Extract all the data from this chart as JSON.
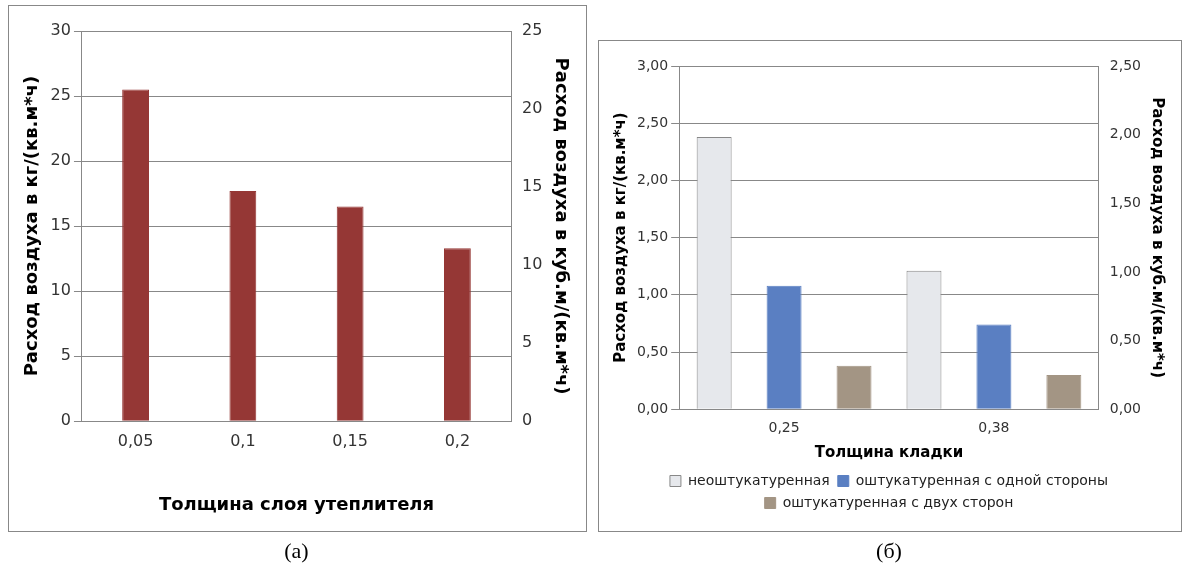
{
  "chart_data": [
    {
      "type": "bar",
      "categories": [
        "0,05",
        "0,1",
        "0,15",
        "0,2"
      ],
      "values": [
        25.5,
        17.7,
        16.5,
        13.3
      ],
      "color": "#953735",
      "xlabel": "Толщина слоя утеплителя",
      "ylabel": "Расход воздуха в кг/(кв.м*ч)",
      "y2label": "Расход воздуха в куб.м/(кв.м*ч)",
      "ylim": [
        0,
        30
      ],
      "yticks": [
        0,
        5,
        10,
        15,
        20,
        25,
        30
      ],
      "y2lim": [
        0,
        25
      ],
      "y2ticks": [
        0,
        5,
        10,
        15,
        20,
        25
      ],
      "grid": "y",
      "annotations": [
        "(а)"
      ]
    },
    {
      "type": "bar",
      "categories": [
        "0,25",
        "0,38"
      ],
      "series": [
        {
          "name": "неоштукатуренная",
          "color": "#e6e8ec",
          "values": [
            2.38,
            1.21
          ]
        },
        {
          "name": "оштукатуренная с одной стороны",
          "color": "#5a7fc2",
          "values": [
            1.08,
            0.74
          ]
        },
        {
          "name": "оштукатуренная с двух сторон",
          "color": "#a39584",
          "values": [
            0.38,
            0.3
          ]
        }
      ],
      "xlabel": "Толщина кладки",
      "ylabel": "Расход воздуха в кг/(кв.м*ч)",
      "y2label": "Расход воздуха в куб.м/(кв.м*ч)",
      "ylim": [
        0,
        3
      ],
      "yticks": [
        {
          "value": 0,
          "label": "0,00"
        },
        {
          "value": 0.5,
          "label": "0,50"
        },
        {
          "value": 1,
          "label": "1,00"
        },
        {
          "value": 1.5,
          "label": "1,50"
        },
        {
          "value": 2,
          "label": "2,00"
        },
        {
          "value": 2.5,
          "label": "2,50"
        },
        {
          "value": 3,
          "label": "3,00"
        }
      ],
      "y2lim": [
        0,
        2.5
      ],
      "y2ticks": [
        {
          "value": 0,
          "label": "0,00"
        },
        {
          "value": 0.5,
          "label": "0,50"
        },
        {
          "value": 1,
          "label": "1,00"
        },
        {
          "value": 1.5,
          "label": "1,50"
        },
        {
          "value": 2,
          "label": "2,00"
        },
        {
          "value": 2.5,
          "label": "2,50"
        }
      ],
      "grid": "y",
      "legend": "bottom",
      "annotations": [
        "(б)"
      ]
    }
  ]
}
